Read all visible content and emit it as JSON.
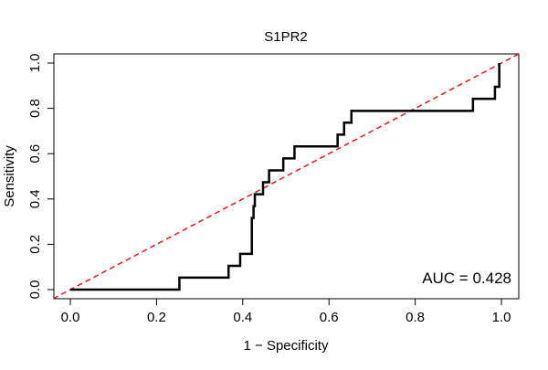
{
  "chart_data": {
    "type": "line",
    "title": "S1PR2",
    "xlabel": "1 − Specificity",
    "ylabel": "Sensitivity",
    "xlim": [
      0,
      1
    ],
    "ylim": [
      0,
      1
    ],
    "x_ticks": [
      0.0,
      0.2,
      0.4,
      0.6,
      0.8,
      1.0
    ],
    "x_tick_labels": [
      "0.0",
      "0.2",
      "0.4",
      "0.6",
      "0.8",
      "1.0"
    ],
    "y_ticks": [
      0.0,
      0.2,
      0.4,
      0.6,
      0.8,
      1.0
    ],
    "y_tick_labels": [
      "0.0",
      "0.2",
      "0.4",
      "0.6",
      "0.8",
      "1.0"
    ],
    "grid": false,
    "annotation": "AUC = 0.428",
    "series": [
      {
        "name": "ROC curve",
        "color": "#000000",
        "x": [
          0.0,
          0.253,
          0.253,
          0.367,
          0.367,
          0.394,
          0.394,
          0.421,
          0.421,
          0.425,
          0.425,
          0.428,
          0.428,
          0.447,
          0.447,
          0.461,
          0.461,
          0.494,
          0.494,
          0.52,
          0.52,
          0.62,
          0.62,
          0.635,
          0.635,
          0.652,
          0.652,
          0.934,
          0.934,
          0.985,
          0.985,
          0.995,
          0.995
        ],
        "y": [
          0.0,
          0.0,
          0.053,
          0.053,
          0.105,
          0.105,
          0.158,
          0.158,
          0.316,
          0.316,
          0.368,
          0.368,
          0.421,
          0.421,
          0.474,
          0.474,
          0.526,
          0.526,
          0.579,
          0.579,
          0.632,
          0.632,
          0.684,
          0.684,
          0.737,
          0.737,
          0.789,
          0.789,
          0.842,
          0.842,
          0.895,
          0.895,
          1.0
        ]
      },
      {
        "name": "Reference diagonal",
        "color": "#e31a1c",
        "x": [
          -0.04,
          1.04
        ],
        "y": [
          -0.04,
          1.04
        ]
      }
    ]
  }
}
